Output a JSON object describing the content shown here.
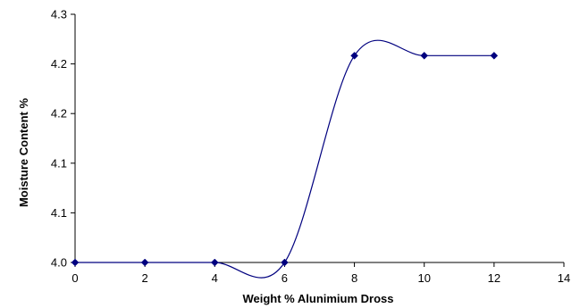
{
  "chart_data": {
    "type": "scatter",
    "title": "",
    "xlabel": "Weight % Alunimium Dross",
    "ylabel": "Moisture Content %",
    "xlim": [
      0,
      14
    ],
    "ylim": [
      4.0,
      4.3
    ],
    "x_ticks": [
      "0",
      "2",
      "4",
      "6",
      "8",
      "10",
      "12",
      "14"
    ],
    "y_ticks": [
      "4.0",
      "4.1",
      "4.1",
      "4.2",
      "4.2",
      "4.3"
    ],
    "smoothed_line": true,
    "grid": false,
    "legend": "none",
    "series": [
      {
        "x": [
          0,
          2,
          4,
          6,
          8,
          10,
          12
        ],
        "y": [
          4.0,
          4.0,
          4.0,
          4.0,
          4.25,
          4.25,
          4.25
        ]
      }
    ]
  },
  "colors": {
    "series": "#00007f",
    "axis": "#000000"
  }
}
